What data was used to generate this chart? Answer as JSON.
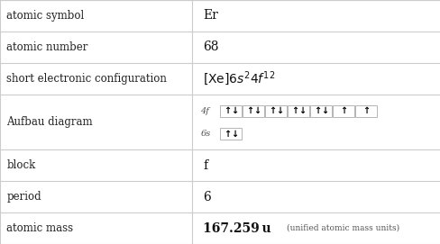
{
  "rows": [
    {
      "label": "atomic symbol",
      "value": "Er",
      "type": "text"
    },
    {
      "label": "atomic number",
      "value": "68",
      "type": "text"
    },
    {
      "label": "short electronic configuration",
      "value": "",
      "type": "formula"
    },
    {
      "label": "Aufbau diagram",
      "value": "",
      "type": "aufbau"
    },
    {
      "label": "block",
      "value": "f",
      "type": "text"
    },
    {
      "label": "period",
      "value": "6",
      "type": "text"
    },
    {
      "label": "atomic mass",
      "value": "167.259",
      "type": "mass"
    }
  ],
  "col_split": 0.435,
  "bg_color": "#ffffff",
  "border_color": "#cccccc",
  "label_font_size": 8.5,
  "value_font_size": 10,
  "row_heights": [
    1,
    1,
    1,
    1.75,
    1,
    1,
    1
  ],
  "aufbau_4f": [
    2,
    2,
    2,
    2,
    2,
    1,
    1
  ],
  "aufbau_6s": [
    2
  ]
}
